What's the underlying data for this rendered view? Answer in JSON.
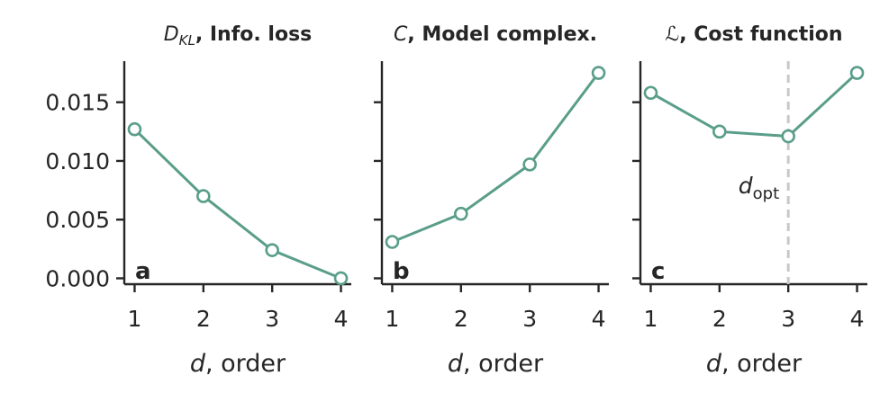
{
  "chart_data": [
    {
      "type": "line",
      "title_symbol": "D",
      "title_subscript": "KL",
      "title_text": ", Info. loss",
      "panel_label": "a",
      "xlabel_var": "d",
      "xlabel_text": ", order",
      "x": [
        1,
        2,
        3,
        4
      ],
      "y": [
        0.0127,
        0.007,
        0.0024,
        0.0
      ],
      "xlim": [
        0.85,
        4.15
      ],
      "ylim": [
        -0.0005,
        0.0185
      ],
      "xticks": [
        1,
        2,
        3,
        4
      ],
      "yticks": [
        0.0,
        0.005,
        0.01,
        0.015
      ],
      "ytick_labels": [
        "0.000",
        "0.005",
        "0.010",
        "0.015"
      ],
      "show_ytick_labels": true,
      "grid": false
    },
    {
      "type": "line",
      "title_symbol": "C",
      "title_subscript": "",
      "title_text": ", Model complex.",
      "panel_label": "b",
      "xlabel_var": "d",
      "xlabel_text": ", order",
      "x": [
        1,
        2,
        3,
        4
      ],
      "y": [
        0.0031,
        0.0055,
        0.0097,
        0.0175
      ],
      "xlim": [
        0.85,
        4.15
      ],
      "ylim": [
        -0.0005,
        0.0185
      ],
      "xticks": [
        1,
        2,
        3,
        4
      ],
      "yticks": [
        0.0,
        0.005,
        0.01,
        0.015
      ],
      "show_ytick_labels": false,
      "grid": false
    },
    {
      "type": "line",
      "title_symbol": "ℒ",
      "title_subscript": "",
      "title_text": ", Cost function",
      "panel_label": "c",
      "xlabel_var": "d",
      "xlabel_text": ", order",
      "x": [
        1,
        2,
        3,
        4
      ],
      "y": [
        0.0158,
        0.0125,
        0.0121,
        0.0175
      ],
      "xlim": [
        0.85,
        4.15
      ],
      "ylim": [
        -0.0005,
        0.0185
      ],
      "xticks": [
        1,
        2,
        3,
        4
      ],
      "yticks": [
        0.0,
        0.005,
        0.01,
        0.015
      ],
      "show_ytick_labels": false,
      "grid": false,
      "vline_x": 3,
      "vline_label_var": "d",
      "vline_label_sub": "opt"
    }
  ],
  "colors": {
    "series": "#5a9e8a",
    "marker_fill": "#ffffff",
    "vline": "#c8c8c8",
    "axis": "#262626"
  }
}
